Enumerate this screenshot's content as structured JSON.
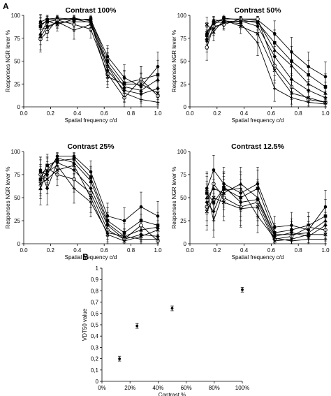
{
  "panel_labels": {
    "a": "A",
    "b": "B"
  },
  "colors": {
    "ink": "#000000",
    "background": "#ffffff"
  },
  "chart_data": [
    {
      "type": "line",
      "title": "Contrast 100%",
      "xlabel": "Spatial frequency c/d",
      "ylabel": "Responses NGR lever %",
      "xlim": [
        0.0,
        1.0
      ],
      "ylim": [
        0,
        100
      ],
      "xticks": [
        "0.0",
        "0.2",
        "0.4",
        "0.6",
        "0.8",
        "1.0"
      ],
      "yticks": [
        "0",
        "25",
        "50",
        "75",
        "100"
      ],
      "x": [
        0.125,
        0.175,
        0.25,
        0.375,
        0.5,
        0.625,
        0.75,
        0.875,
        1.0
      ],
      "series": [
        {
          "values": [
            93,
            96,
            97,
            96,
            95,
            55,
            32,
            22,
            44
          ],
          "err": [
            8,
            4,
            3,
            4,
            4,
            12,
            14,
            14,
            16
          ]
        },
        {
          "values": [
            88,
            95,
            96,
            95,
            96,
            50,
            26,
            30,
            35
          ],
          "err": [
            10,
            5,
            4,
            5,
            4,
            14,
            14,
            14,
            16
          ]
        },
        {
          "values": [
            80,
            93,
            95,
            97,
            94,
            46,
            22,
            18,
            30
          ],
          "err": [
            12,
            6,
            5,
            3,
            5,
            12,
            12,
            12,
            14
          ]
        },
        {
          "values": [
            76,
            88,
            92,
            93,
            93,
            40,
            18,
            14,
            20
          ],
          "err": [
            14,
            8,
            6,
            6,
            6,
            12,
            12,
            10,
            12
          ]
        },
        {
          "values": [
            74,
            82,
            95,
            90,
            85,
            36,
            10,
            30,
            12
          ],
          "err": [
            14,
            10,
            4,
            8,
            10,
            12,
            10,
            14,
            10
          ]
        },
        {
          "values": [
            90,
            94,
            90,
            96,
            92,
            33,
            25,
            25,
            15
          ],
          "err": [
            10,
            5,
            7,
            4,
            6,
            12,
            14,
            12,
            12
          ]
        },
        {
          "values": [
            85,
            86,
            93,
            84,
            90,
            45,
            15,
            8,
            5
          ],
          "err": [
            12,
            10,
            6,
            10,
            8,
            14,
            10,
            8,
            5
          ]
        }
      ]
    },
    {
      "type": "line",
      "title": "Contrast 50%",
      "xlabel": "Spatial frequency c/d",
      "ylabel": "Responses NGR lever %",
      "xlim": [
        0.0,
        1.0
      ],
      "ylim": [
        0,
        100
      ],
      "xticks": [
        "0.0",
        "0.2",
        "0.4",
        "0.6",
        "0.8",
        "1.0"
      ],
      "yticks": [
        "0",
        "25",
        "50",
        "75",
        "100"
      ],
      "x": [
        0.125,
        0.175,
        0.25,
        0.375,
        0.5,
        0.625,
        0.75,
        0.875,
        1.0
      ],
      "series": [
        {
          "values": [
            80,
            93,
            96,
            96,
            95,
            80,
            60,
            44,
            33
          ],
          "err": [
            10,
            5,
            3,
            3,
            4,
            14,
            16,
            16,
            16
          ]
        },
        {
          "values": [
            78,
            90,
            97,
            95,
            92,
            70,
            50,
            35,
            22
          ],
          "err": [
            10,
            6,
            3,
            4,
            5,
            14,
            16,
            16,
            14
          ]
        },
        {
          "values": [
            75,
            95,
            94,
            93,
            94,
            62,
            45,
            25,
            15
          ],
          "err": [
            12,
            4,
            5,
            5,
            5,
            16,
            16,
            14,
            12
          ]
        },
        {
          "values": [
            72,
            86,
            92,
            94,
            88,
            55,
            30,
            18,
            10
          ],
          "err": [
            12,
            8,
            6,
            5,
            8,
            16,
            14,
            12,
            10
          ]
        },
        {
          "values": [
            65,
            88,
            90,
            96,
            96,
            45,
            22,
            8,
            5
          ],
          "err": [
            14,
            8,
            6,
            3,
            3,
            16,
            14,
            8,
            5
          ]
        },
        {
          "values": [
            90,
            82,
            95,
            88,
            80,
            40,
            15,
            10,
            5
          ],
          "err": [
            8,
            10,
            4,
            8,
            10,
            14,
            12,
            8,
            5
          ]
        },
        {
          "values": [
            82,
            92,
            93,
            91,
            70,
            20,
            10,
            5,
            3
          ],
          "err": [
            10,
            6,
            5,
            6,
            14,
            14,
            10,
            5,
            3
          ]
        }
      ]
    },
    {
      "type": "line",
      "title": "Contrast 25%",
      "xlabel": "Spatial frequency c/d",
      "ylabel": "Responses NGR lever %",
      "xlim": [
        0.0,
        1.0
      ],
      "ylim": [
        0,
        100
      ],
      "xticks": [
        "0.0",
        "0.2",
        "0.4",
        "0.6",
        "0.8",
        "1.0"
      ],
      "yticks": [
        "0",
        "25",
        "50",
        "75",
        "100"
      ],
      "x": [
        0.125,
        0.175,
        0.25,
        0.375,
        0.5,
        0.625,
        0.75,
        0.875,
        1.0
      ],
      "series": [
        {
          "values": [
            78,
            75,
            95,
            95,
            78,
            30,
            25,
            40,
            30
          ],
          "err": [
            16,
            14,
            4,
            4,
            12,
            14,
            14,
            16,
            16
          ]
        },
        {
          "values": [
            70,
            85,
            90,
            92,
            72,
            25,
            12,
            25,
            20
          ],
          "err": [
            16,
            12,
            6,
            6,
            12,
            14,
            10,
            14,
            14
          ]
        },
        {
          "values": [
            60,
            80,
            93,
            88,
            68,
            22,
            8,
            15,
            18
          ],
          "err": [
            18,
            14,
            5,
            8,
            14,
            12,
            8,
            12,
            12
          ]
        },
        {
          "values": [
            80,
            60,
            88,
            80,
            60,
            20,
            5,
            10,
            8
          ],
          "err": [
            14,
            18,
            8,
            10,
            14,
            12,
            5,
            8,
            8
          ]
        },
        {
          "values": [
            75,
            82,
            75,
            70,
            55,
            15,
            5,
            20,
            3
          ],
          "err": [
            16,
            12,
            12,
            14,
            16,
            10,
            5,
            12,
            3
          ]
        },
        {
          "values": [
            65,
            70,
            80,
            85,
            50,
            10,
            3,
            8,
            15
          ],
          "err": [
            16,
            16,
            10,
            10,
            16,
            10,
            3,
            8,
            10
          ]
        },
        {
          "values": [
            68,
            78,
            85,
            60,
            45,
            12,
            8,
            5,
            5
          ],
          "err": [
            16,
            14,
            8,
            16,
            16,
            10,
            8,
            5,
            5
          ]
        }
      ]
    },
    {
      "type": "line",
      "title": "Contrast 12.5%",
      "xlabel": "Spatial frequency c/d",
      "ylabel": "Responses NGR lever %",
      "xlim": [
        0.0,
        1.0
      ],
      "ylim": [
        0,
        100
      ],
      "xticks": [
        "0.0",
        "0.2",
        "0.4",
        "0.6",
        "0.8",
        "1.0"
      ],
      "yticks": [
        "0",
        "25",
        "50",
        "75",
        "100"
      ],
      "x": [
        0.125,
        0.175,
        0.25,
        0.375,
        0.5,
        0.625,
        0.75,
        0.875,
        1.0
      ],
      "series": [
        {
          "values": [
            60,
            80,
            65,
            55,
            65,
            18,
            20,
            15,
            40
          ],
          "err": [
            18,
            16,
            18,
            20,
            18,
            12,
            14,
            14,
            18
          ]
        },
        {
          "values": [
            55,
            45,
            60,
            50,
            60,
            12,
            15,
            20,
            30
          ],
          "err": [
            18,
            20,
            18,
            20,
            20,
            10,
            12,
            14,
            18
          ]
        },
        {
          "values": [
            50,
            60,
            55,
            65,
            50,
            10,
            10,
            12,
            25
          ],
          "err": [
            18,
            18,
            18,
            18,
            20,
            10,
            10,
            12,
            16
          ]
        },
        {
          "values": [
            45,
            35,
            62,
            45,
            48,
            8,
            12,
            8,
            20
          ],
          "err": [
            20,
            20,
            16,
            20,
            20,
            8,
            12,
            8,
            14
          ]
        },
        {
          "values": [
            40,
            65,
            50,
            40,
            45,
            5,
            8,
            18,
            15
          ],
          "err": [
            20,
            16,
            20,
            20,
            20,
            5,
            8,
            12,
            12
          ]
        },
        {
          "values": [
            35,
            50,
            45,
            38,
            40,
            3,
            5,
            10,
            10
          ],
          "err": [
            20,
            20,
            20,
            20,
            20,
            3,
            5,
            10,
            10
          ]
        },
        {
          "values": [
            58,
            25,
            58,
            60,
            30,
            6,
            3,
            5,
            5
          ],
          "err": [
            18,
            18,
            18,
            18,
            18,
            6,
            3,
            5,
            5
          ]
        }
      ]
    },
    {
      "type": "scatter",
      "title": "",
      "xlabel": "Contrast %",
      "ylabel": "VDT50 value",
      "xlim": [
        0,
        100
      ],
      "ylim": [
        0,
        1.0
      ],
      "xticks": [
        "0%",
        "20%",
        "40%",
        "60%",
        "80%",
        "100%"
      ],
      "yticks": [
        "0",
        "0,1",
        "0,2",
        "0,3",
        "0,4",
        "0,5",
        "0,6",
        "0,7",
        "0,8",
        "0,9",
        "1"
      ],
      "x": [
        12.5,
        25,
        50,
        100
      ],
      "y": [
        0.2,
        0.49,
        0.645,
        0.81
      ],
      "err": [
        0.015,
        0.015,
        0.015,
        0.015
      ]
    }
  ]
}
